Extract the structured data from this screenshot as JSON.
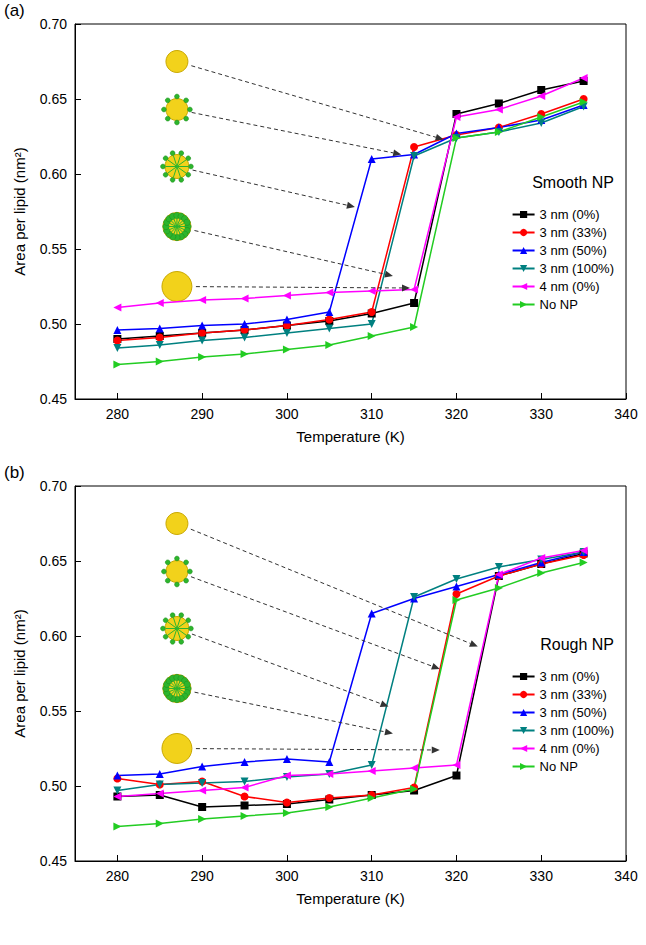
{
  "chart_data": [
    {
      "type": "line",
      "panel": "(a)",
      "annotation": "Smooth NP",
      "xlabel": "Temperature (K)",
      "ylabel": "Area per lipid (nm²)",
      "x": [
        280,
        285,
        290,
        295,
        300,
        305,
        310,
        315,
        320,
        325,
        330,
        335
      ],
      "xlim": [
        275,
        340
      ],
      "xticks": [
        280,
        290,
        300,
        310,
        320,
        330,
        340
      ],
      "ylim": [
        0.45,
        0.7
      ],
      "yticks": [
        0.45,
        {
          "value": 0.5,
          "label": "0.50"
        },
        0.55,
        {
          "value": 0.6,
          "label": "0.60"
        },
        0.65,
        {
          "value": 0.7,
          "label": "0.70"
        }
      ],
      "grid": false,
      "legend": "right",
      "series": [
        {
          "name": "3 nm (0%)",
          "color": "#000000",
          "marker": "square",
          "values": [
            0.49,
            0.492,
            0.494,
            0.496,
            0.499,
            0.502,
            0.507,
            0.514,
            0.64,
            0.647,
            0.656,
            0.662
          ]
        },
        {
          "name": "3 nm (33%)",
          "color": "#ff0000",
          "marker": "circle",
          "values": [
            0.489,
            0.491,
            0.494,
            0.496,
            0.499,
            0.503,
            0.508,
            0.618,
            0.626,
            0.631,
            0.64,
            0.65
          ]
        },
        {
          "name": "3 nm (50%)",
          "color": "#0000ff",
          "marker": "triangle-up",
          "values": [
            0.496,
            0.497,
            0.499,
            0.5,
            0.503,
            0.508,
            0.61,
            0.613,
            0.627,
            0.631,
            0.636,
            0.646
          ]
        },
        {
          "name": "3 nm (100%)",
          "color": "#008080",
          "marker": "triangle-down",
          "values": [
            0.484,
            0.486,
            0.489,
            0.491,
            0.494,
            0.497,
            0.5,
            0.612,
            0.624,
            0.628,
            0.634,
            0.645
          ]
        },
        {
          "name": "4 nm (0%)",
          "color": "#ff00ff",
          "marker": "triangle-left",
          "values": [
            0.511,
            0.514,
            0.516,
            0.517,
            0.519,
            0.521,
            0.522,
            0.523,
            0.638,
            0.643,
            0.652,
            0.664
          ]
        },
        {
          "name": "No NP",
          "color": "#22cc22",
          "marker": "triangle-right",
          "values": [
            0.473,
            0.475,
            0.478,
            0.48,
            0.483,
            0.486,
            0.492,
            0.498,
            0.624,
            0.628,
            0.638,
            0.648
          ]
        }
      ]
    },
    {
      "type": "line",
      "panel": "(b)",
      "annotation": "Rough NP",
      "xlabel": "Temperature (K)",
      "ylabel": "Area per lipid (nm²)",
      "x": [
        280,
        285,
        290,
        295,
        300,
        305,
        310,
        315,
        320,
        325,
        330,
        335
      ],
      "xlim": [
        275,
        340
      ],
      "xticks": [
        280,
        290,
        300,
        310,
        320,
        330,
        340
      ],
      "ylim": [
        0.45,
        0.7
      ],
      "yticks": [
        0.45,
        {
          "value": 0.5,
          "label": "0.50"
        },
        0.55,
        {
          "value": 0.6,
          "label": "0.60"
        },
        0.65,
        {
          "value": 0.7,
          "label": "0.70"
        }
      ],
      "grid": false,
      "legend": "right",
      "series": [
        {
          "name": "3 nm (0%)",
          "color": "#000000",
          "marker": "square",
          "values": [
            0.493,
            0.494,
            0.486,
            0.487,
            0.488,
            0.491,
            0.494,
            0.497,
            0.507,
            0.64,
            0.648,
            0.655
          ]
        },
        {
          "name": "3 nm (33%)",
          "color": "#ff0000",
          "marker": "circle",
          "values": [
            0.505,
            0.501,
            0.503,
            0.493,
            0.489,
            0.492,
            0.494,
            0.499,
            0.628,
            0.64,
            0.648,
            0.654
          ]
        },
        {
          "name": "3 nm (50%)",
          "color": "#0000ff",
          "marker": "triangle-up",
          "values": [
            0.507,
            0.508,
            0.513,
            0.516,
            0.518,
            0.516,
            0.615,
            0.625,
            0.633,
            0.641,
            0.649,
            0.656
          ]
        },
        {
          "name": "3 nm (100%)",
          "color": "#008080",
          "marker": "triangle-down",
          "values": [
            0.497,
            0.501,
            0.502,
            0.503,
            0.506,
            0.508,
            0.514,
            0.626,
            0.638,
            0.646,
            0.651,
            0.656
          ]
        },
        {
          "name": "4 nm (0%)",
          "color": "#ff00ff",
          "marker": "triangle-left",
          "values": [
            0.493,
            0.495,
            0.497,
            0.499,
            0.507,
            0.508,
            0.51,
            0.512,
            0.514,
            0.641,
            0.652,
            0.657
          ]
        },
        {
          "name": "No NP",
          "color": "#22cc22",
          "marker": "triangle-right",
          "values": [
            0.473,
            0.475,
            0.478,
            0.48,
            0.482,
            0.486,
            0.492,
            0.498,
            0.624,
            0.632,
            0.642,
            0.649
          ]
        }
      ]
    }
  ]
}
